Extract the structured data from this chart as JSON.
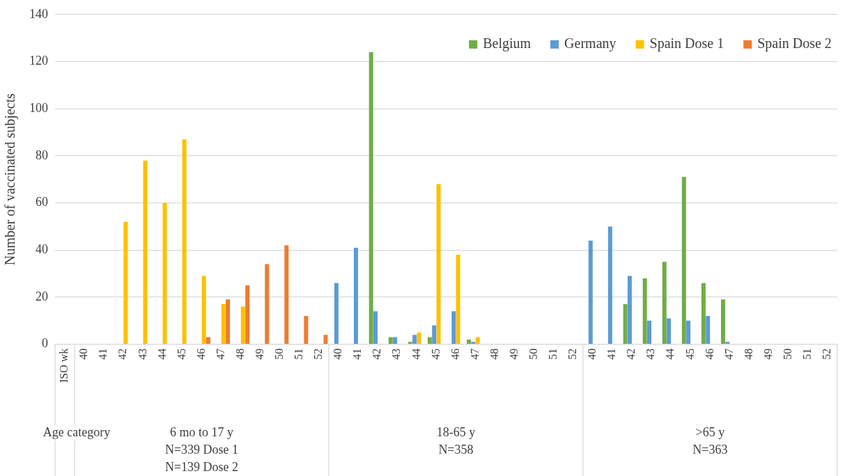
{
  "chart_data": {
    "type": "bar",
    "ylabel": "Number of vaccinated subjects",
    "categories": [
      "ISO wk",
      "40",
      "41",
      "42",
      "43",
      "44",
      "45",
      "46",
      "47",
      "48",
      "49",
      "50",
      "51",
      "52",
      "40",
      "41",
      "42",
      "43",
      "44",
      "45",
      "46",
      "47",
      "48",
      "49",
      "50",
      "51",
      "52",
      "40",
      "41",
      "42",
      "43",
      "44",
      "45",
      "46",
      "47",
      "48",
      "49",
      "50",
      "51",
      "52"
    ],
    "series": [
      {
        "name": "Belgium",
        "color": "#70ad47",
        "values": [
          null,
          null,
          null,
          null,
          null,
          null,
          null,
          null,
          null,
          null,
          null,
          null,
          null,
          null,
          null,
          null,
          124,
          3,
          1,
          3,
          null,
          2,
          null,
          null,
          null,
          null,
          null,
          null,
          null,
          17,
          28,
          35,
          71,
          26,
          19,
          null,
          null,
          null,
          null,
          null
        ]
      },
      {
        "name": "Germany",
        "color": "#5b9bd5",
        "values": [
          null,
          null,
          null,
          null,
          null,
          null,
          null,
          null,
          null,
          null,
          null,
          null,
          null,
          null,
          26,
          41,
          14,
          3,
          4,
          8,
          14,
          1,
          null,
          null,
          null,
          null,
          null,
          44,
          50,
          29,
          10,
          11,
          10,
          12,
          1,
          null,
          null,
          null,
          null,
          null
        ]
      },
      {
        "name": "Spain Dose 1",
        "color": "#ffc000",
        "values": [
          null,
          null,
          null,
          52,
          78,
          60,
          87,
          29,
          17,
          16,
          null,
          null,
          null,
          null,
          null,
          null,
          null,
          null,
          5,
          68,
          38,
          3,
          null,
          null,
          null,
          null,
          null,
          null,
          null,
          null,
          null,
          null,
          null,
          null,
          null,
          null,
          null,
          null,
          null,
          null
        ]
      },
      {
        "name": "Spain Dose 2",
        "color": "#ed7d31",
        "values": [
          null,
          null,
          null,
          null,
          null,
          null,
          null,
          3,
          19,
          25,
          34,
          42,
          12,
          4,
          null,
          null,
          null,
          null,
          null,
          null,
          null,
          null,
          null,
          null,
          null,
          null,
          null,
          null,
          null,
          null,
          null,
          null,
          null,
          null,
          null,
          null,
          null,
          null,
          null,
          null
        ]
      }
    ],
    "ylim": [
      0,
      140
    ],
    "yticks": [
      0,
      20,
      40,
      60,
      80,
      100,
      120,
      140
    ],
    "grid": "y",
    "legend": "top right",
    "annotations": [
      "Age category",
      "6 mo to 17 y\nN=339 Dose 1\nN=139 Dose 2",
      "18-65 y\nN=358",
      ">65 y\nN=363"
    ]
  }
}
